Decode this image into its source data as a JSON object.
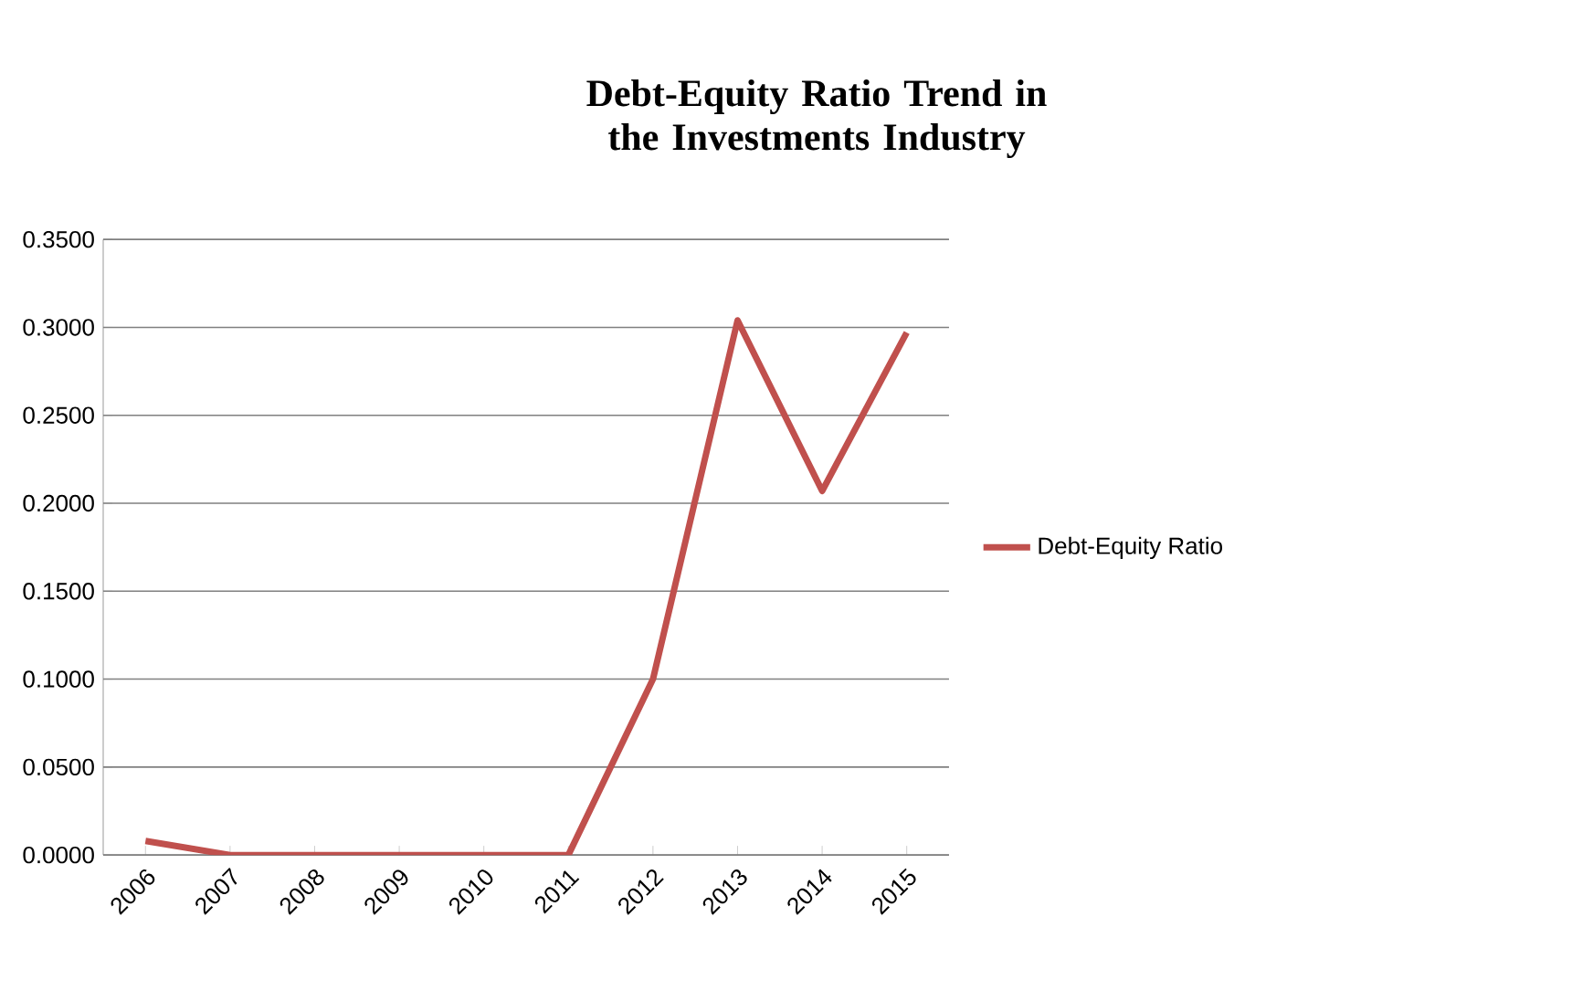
{
  "chart_data": {
    "type": "line",
    "title": "Debt-Equity Ratio Trend in the Investments Industry",
    "categories": [
      "2006",
      "2007",
      "2008",
      "2009",
      "2010",
      "2011",
      "2012",
      "2013",
      "2014",
      "2015"
    ],
    "series": [
      {
        "name": "Debt-Equity Ratio",
        "color": "#c0504d",
        "values": [
          0.008,
          0,
          0,
          0,
          0,
          0,
          0.1,
          0.304,
          0.207,
          0.297
        ]
      }
    ],
    "ylim": [
      0,
      0.35
    ],
    "yticks": [
      {
        "value": 0,
        "label": "0.0000"
      },
      {
        "value": 0.05,
        "label": "0.0500"
      },
      {
        "value": 0.1,
        "label": "0.1000"
      },
      {
        "value": 0.15,
        "label": "0.1500"
      },
      {
        "value": 0.2,
        "label": "0.2000"
      },
      {
        "value": 0.25,
        "label": "0.2500"
      },
      {
        "value": 0.3,
        "label": "0.3000"
      },
      {
        "value": 0.35,
        "label": "0.3500"
      }
    ],
    "grid": "y",
    "legend": "right",
    "marker": "none",
    "line_style": "solid"
  }
}
